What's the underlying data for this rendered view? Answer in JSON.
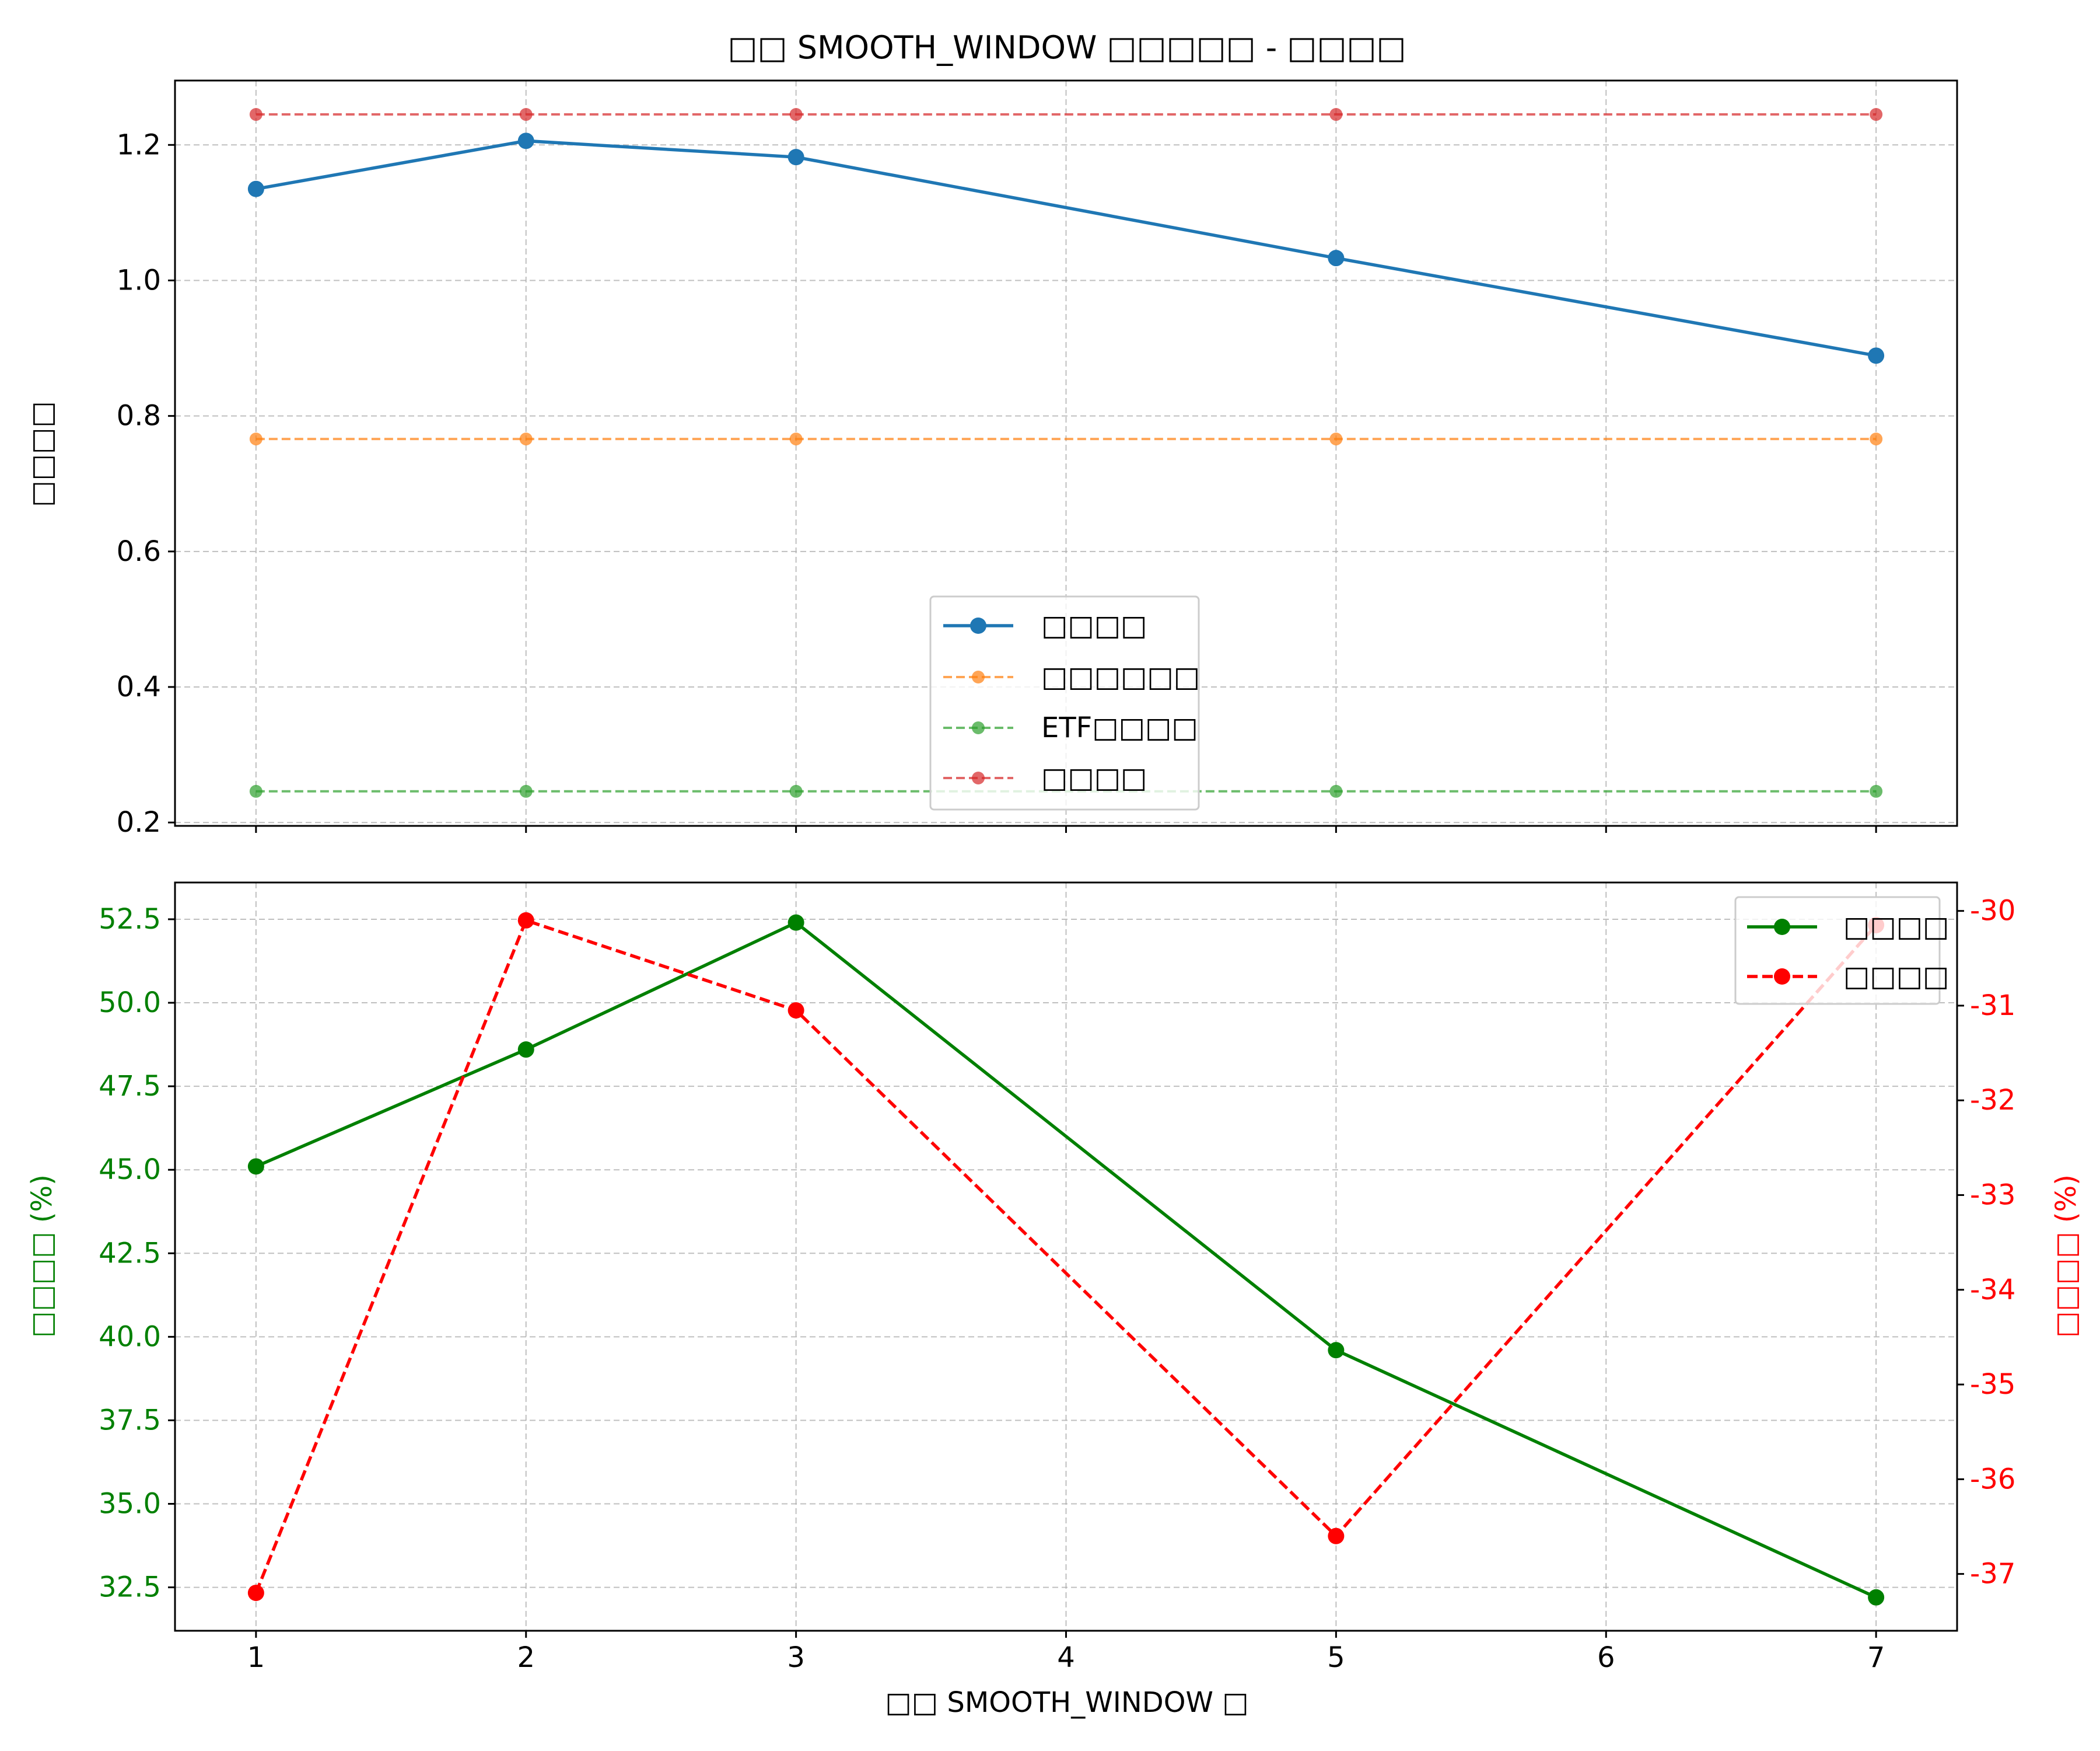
{
  "chart_data": [
    {
      "type": "line",
      "title": "□□ SMOOTH_WINDOW □□□□□ - □□□□",
      "xlabel": "",
      "ylabel": "□□□□",
      "x": [
        1,
        2,
        3,
        5,
        7
      ],
      "xticks": [
        "1",
        "2",
        "3",
        "4",
        "5",
        "6",
        "7"
      ],
      "xlim": [
        0.7,
        7.3
      ],
      "ylim": [
        0.195,
        1.295
      ],
      "yticks": [
        "0.2",
        "0.4",
        "0.6",
        "0.8",
        "1.0",
        "1.2"
      ],
      "grid": true,
      "legend": "lower-center",
      "series": [
        {
          "name": "□□□□",
          "values": [
            1.135,
            1.206,
            1.182,
            1.033,
            0.889
          ],
          "color": "#1f77b4",
          "style": "solid"
        },
        {
          "name": "□□□□□□",
          "values": [
            0.766,
            0.766,
            0.766,
            0.766,
            0.766
          ],
          "color": "#ff7f0e",
          "style": "dashed"
        },
        {
          "name": "ETF□□□□",
          "values": [
            0.246,
            0.246,
            0.246,
            0.246,
            0.246
          ],
          "color": "#2ca02c",
          "style": "dashed"
        },
        {
          "name": "□□□□",
          "values": [
            1.245,
            1.245,
            1.245,
            1.245,
            1.245
          ],
          "color": "#d62728",
          "style": "dashed"
        }
      ]
    },
    {
      "type": "line",
      "title": "",
      "xlabel": "□□ SMOOTH_WINDOW □",
      "ylabel_left": "□□□□ (%)",
      "ylabel_right": "□□□□ (%)",
      "x": [
        1,
        2,
        3,
        5,
        7
      ],
      "xticks": [
        "1",
        "2",
        "3",
        "4",
        "5",
        "6",
        "7"
      ],
      "xlim": [
        0.7,
        7.3
      ],
      "ylim_left": [
        31.2,
        53.6
      ],
      "ylim_right": [
        -37.6,
        -29.7
      ],
      "yticks_left": [
        "32.5",
        "35.0",
        "37.5",
        "40.0",
        "42.5",
        "45.0",
        "47.5",
        "50.0",
        "52.5"
      ],
      "yticks_right": [
        "-37",
        "-36",
        "-35",
        "-34",
        "-33",
        "-32",
        "-31",
        "-30"
      ],
      "grid": true,
      "legend": "top-right",
      "series": [
        {
          "name": "□□□□",
          "axis": "left",
          "values": [
            45.1,
            48.6,
            52.4,
            39.6,
            32.2
          ],
          "color": "#008000",
          "style": "solid"
        },
        {
          "name": "□□□□",
          "axis": "right",
          "values": [
            -37.2,
            -30.1,
            -31.05,
            -36.6,
            -30.15
          ],
          "color": "#ff0000",
          "style": "dashed"
        }
      ]
    }
  ]
}
